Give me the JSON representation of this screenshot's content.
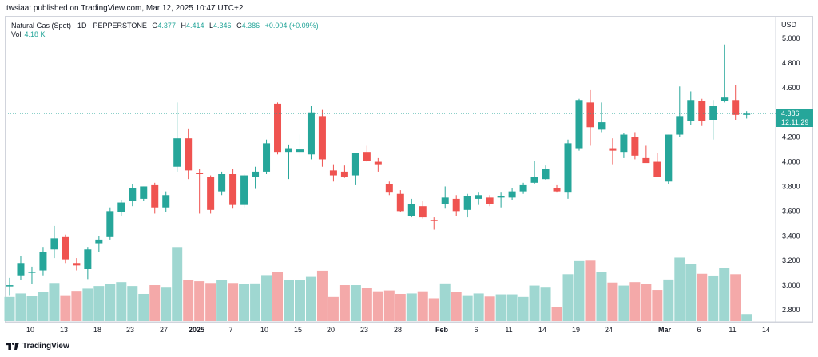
{
  "header": {
    "published": "twsiaat published on TradingView.com, Mar 12, 2025 10:47 UTC+2"
  },
  "legend": {
    "symbol": "Natural Gas (Spot) · 1D · PEPPERSTONE",
    "o_label": "O",
    "o_value": "4.377",
    "h_label": "H",
    "h_value": "4.414",
    "l_label": "L",
    "l_value": "4.346",
    "c_label": "C",
    "c_value": "4.386",
    "change": "+0.004 (+0.09%)",
    "vol_label": "Vol",
    "vol_value": "4.18 K"
  },
  "axis": {
    "currency": "USD",
    "price_tag_value": "4.386",
    "price_tag_countdown": "12:11:29"
  },
  "footer": {
    "brand": "TradingView"
  },
  "colors": {
    "up": "#26a69a",
    "down": "#ef5350",
    "vol_up": "#9fd7d1",
    "vol_down": "#f4a9a9"
  },
  "chart_data": {
    "type": "candlestick",
    "ylim": [
      2.7,
      5.1
    ],
    "y_ticks": [
      "5.000",
      "4.800",
      "4.600",
      "4.400",
      "4.200",
      "4.000",
      "3.800",
      "3.600",
      "3.400",
      "3.200",
      "3.000",
      "2.800"
    ],
    "x_ticks": [
      "10",
      "13",
      "18",
      "23",
      "27",
      "2025",
      "7",
      "10",
      "15",
      "20",
      "23",
      "28",
      "Feb",
      "6",
      "11",
      "14",
      "19",
      "24",
      "Mar",
      "6",
      "11",
      "14"
    ],
    "candles": [
      {
        "o": 2.99,
        "h": 3.06,
        "l": 2.92,
        "c": 3.0,
        "v": 0.55
      },
      {
        "o": 3.08,
        "h": 3.24,
        "l": 3.04,
        "c": 3.18,
        "v": 0.63
      },
      {
        "o": 3.1,
        "h": 3.15,
        "l": 3.01,
        "c": 3.11,
        "v": 0.57
      },
      {
        "o": 3.12,
        "h": 3.31,
        "l": 3.08,
        "c": 3.27,
        "v": 0.67
      },
      {
        "o": 3.29,
        "h": 3.48,
        "l": 3.22,
        "c": 3.38,
        "v": 0.87
      },
      {
        "o": 3.39,
        "h": 3.41,
        "l": 3.18,
        "c": 3.21,
        "v": 0.59
      },
      {
        "o": 3.18,
        "h": 3.22,
        "l": 3.12,
        "c": 3.16,
        "v": 0.69
      },
      {
        "o": 3.13,
        "h": 3.31,
        "l": 3.05,
        "c": 3.29,
        "v": 0.74
      },
      {
        "o": 3.34,
        "h": 3.4,
        "l": 3.27,
        "c": 3.37,
        "v": 0.8
      },
      {
        "o": 3.39,
        "h": 3.63,
        "l": 3.37,
        "c": 3.6,
        "v": 0.85
      },
      {
        "o": 3.59,
        "h": 3.69,
        "l": 3.56,
        "c": 3.67,
        "v": 0.89
      },
      {
        "o": 3.68,
        "h": 3.82,
        "l": 3.64,
        "c": 3.79,
        "v": 0.8
      },
      {
        "o": 3.7,
        "h": 3.8,
        "l": 3.68,
        "c": 3.8,
        "v": 0.62
      },
      {
        "o": 3.81,
        "h": 3.83,
        "l": 3.58,
        "c": 3.63,
        "v": 0.82
      },
      {
        "o": 3.63,
        "h": 3.76,
        "l": 3.59,
        "c": 3.73,
        "v": 0.78
      },
      {
        "o": 3.96,
        "h": 4.48,
        "l": 3.92,
        "c": 4.19,
        "v": 1.69
      },
      {
        "o": 4.19,
        "h": 4.27,
        "l": 3.86,
        "c": 3.93,
        "v": 0.93
      },
      {
        "o": 3.91,
        "h": 3.94,
        "l": 3.58,
        "c": 3.9,
        "v": 0.91
      },
      {
        "o": 3.88,
        "h": 3.89,
        "l": 3.58,
        "c": 3.61,
        "v": 0.87
      },
      {
        "o": 3.76,
        "h": 3.92,
        "l": 3.73,
        "c": 3.9,
        "v": 0.93
      },
      {
        "o": 3.9,
        "h": 3.94,
        "l": 3.62,
        "c": 3.65,
        "v": 0.87
      },
      {
        "o": 3.65,
        "h": 3.9,
        "l": 3.63,
        "c": 3.89,
        "v": 0.84
      },
      {
        "o": 3.88,
        "h": 3.96,
        "l": 3.78,
        "c": 3.92,
        "v": 0.86
      },
      {
        "o": 3.92,
        "h": 4.18,
        "l": 3.9,
        "c": 4.15,
        "v": 1.05
      },
      {
        "o": 4.47,
        "h": 4.48,
        "l": 4.06,
        "c": 4.08,
        "v": 1.12
      },
      {
        "o": 4.08,
        "h": 4.14,
        "l": 3.86,
        "c": 4.11,
        "v": 0.93
      },
      {
        "o": 4.08,
        "h": 4.22,
        "l": 4.04,
        "c": 4.1,
        "v": 0.93
      },
      {
        "o": 4.06,
        "h": 4.45,
        "l": 4.02,
        "c": 4.4,
        "v": 1.01
      },
      {
        "o": 4.37,
        "h": 4.42,
        "l": 3.96,
        "c": 4.02,
        "v": 1.15
      },
      {
        "o": 3.93,
        "h": 3.98,
        "l": 3.84,
        "c": 3.89,
        "v": 0.55
      },
      {
        "o": 3.92,
        "h": 3.97,
        "l": 3.87,
        "c": 3.88,
        "v": 0.82
      },
      {
        "o": 3.89,
        "h": 4.07,
        "l": 3.81,
        "c": 4.07,
        "v": 0.82
      },
      {
        "o": 4.08,
        "h": 4.13,
        "l": 4.0,
        "c": 4.01,
        "v": 0.75
      },
      {
        "o": 4.0,
        "h": 4.03,
        "l": 3.92,
        "c": 3.98,
        "v": 0.68
      },
      {
        "o": 3.82,
        "h": 3.84,
        "l": 3.73,
        "c": 3.75,
        "v": 0.7
      },
      {
        "o": 3.74,
        "h": 3.77,
        "l": 3.59,
        "c": 3.6,
        "v": 0.62
      },
      {
        "o": 3.56,
        "h": 3.7,
        "l": 3.55,
        "c": 3.66,
        "v": 0.63
      },
      {
        "o": 3.64,
        "h": 3.68,
        "l": 3.54,
        "c": 3.55,
        "v": 0.68
      },
      {
        "o": 3.53,
        "h": 3.55,
        "l": 3.45,
        "c": 3.52,
        "v": 0.52
      },
      {
        "o": 3.66,
        "h": 3.8,
        "l": 3.62,
        "c": 3.71,
        "v": 0.86
      },
      {
        "o": 3.7,
        "h": 3.73,
        "l": 3.56,
        "c": 3.6,
        "v": 0.67
      },
      {
        "o": 3.61,
        "h": 3.74,
        "l": 3.55,
        "c": 3.72,
        "v": 0.59
      },
      {
        "o": 3.7,
        "h": 3.75,
        "l": 3.65,
        "c": 3.73,
        "v": 0.63
      },
      {
        "o": 3.71,
        "h": 3.73,
        "l": 3.64,
        "c": 3.66,
        "v": 0.56
      },
      {
        "o": 3.71,
        "h": 3.75,
        "l": 3.63,
        "c": 3.72,
        "v": 0.61
      },
      {
        "o": 3.71,
        "h": 3.79,
        "l": 3.69,
        "c": 3.76,
        "v": 0.61
      },
      {
        "o": 3.76,
        "h": 3.83,
        "l": 3.74,
        "c": 3.81,
        "v": 0.55
      },
      {
        "o": 3.83,
        "h": 4.01,
        "l": 3.82,
        "c": 3.88,
        "v": 0.81
      },
      {
        "o": 3.86,
        "h": 3.97,
        "l": 3.85,
        "c": 3.94,
        "v": 0.78
      },
      {
        "o": 3.79,
        "h": 3.81,
        "l": 3.75,
        "c": 3.76,
        "v": 0.31
      },
      {
        "o": 3.75,
        "h": 4.18,
        "l": 3.7,
        "c": 4.15,
        "v": 1.07
      },
      {
        "o": 4.11,
        "h": 4.51,
        "l": 4.09,
        "c": 4.5,
        "v": 1.37
      },
      {
        "o": 4.48,
        "h": 4.58,
        "l": 4.13,
        "c": 4.28,
        "v": 1.38
      },
      {
        "o": 4.26,
        "h": 4.48,
        "l": 4.24,
        "c": 4.32,
        "v": 1.12
      },
      {
        "o": 4.11,
        "h": 4.19,
        "l": 3.98,
        "c": 4.09,
        "v": 0.88
      },
      {
        "o": 4.08,
        "h": 4.23,
        "l": 4.03,
        "c": 4.22,
        "v": 0.81
      },
      {
        "o": 4.2,
        "h": 4.24,
        "l": 4.02,
        "c": 4.05,
        "v": 0.89
      },
      {
        "o": 4.03,
        "h": 4.13,
        "l": 4.01,
        "c": 3.99,
        "v": 0.84
      },
      {
        "o": 4.0,
        "h": 4.07,
        "l": 3.89,
        "c": 3.88,
        "v": 0.71
      },
      {
        "o": 3.84,
        "h": 4.22,
        "l": 3.82,
        "c": 4.22,
        "v": 0.95
      },
      {
        "o": 4.22,
        "h": 4.61,
        "l": 4.2,
        "c": 4.37,
        "v": 1.45
      },
      {
        "o": 4.33,
        "h": 4.57,
        "l": 4.3,
        "c": 4.5,
        "v": 1.3
      },
      {
        "o": 4.49,
        "h": 4.51,
        "l": 4.29,
        "c": 4.33,
        "v": 1.08
      },
      {
        "o": 4.34,
        "h": 4.5,
        "l": 4.18,
        "c": 4.45,
        "v": 1.04
      },
      {
        "o": 4.49,
        "h": 4.95,
        "l": 4.48,
        "c": 4.52,
        "v": 1.22
      },
      {
        "o": 4.5,
        "h": 4.62,
        "l": 4.34,
        "c": 4.38,
        "v": 1.07
      },
      {
        "o": 4.38,
        "h": 4.41,
        "l": 4.35,
        "c": 4.39,
        "v": 0.16
      }
    ]
  }
}
